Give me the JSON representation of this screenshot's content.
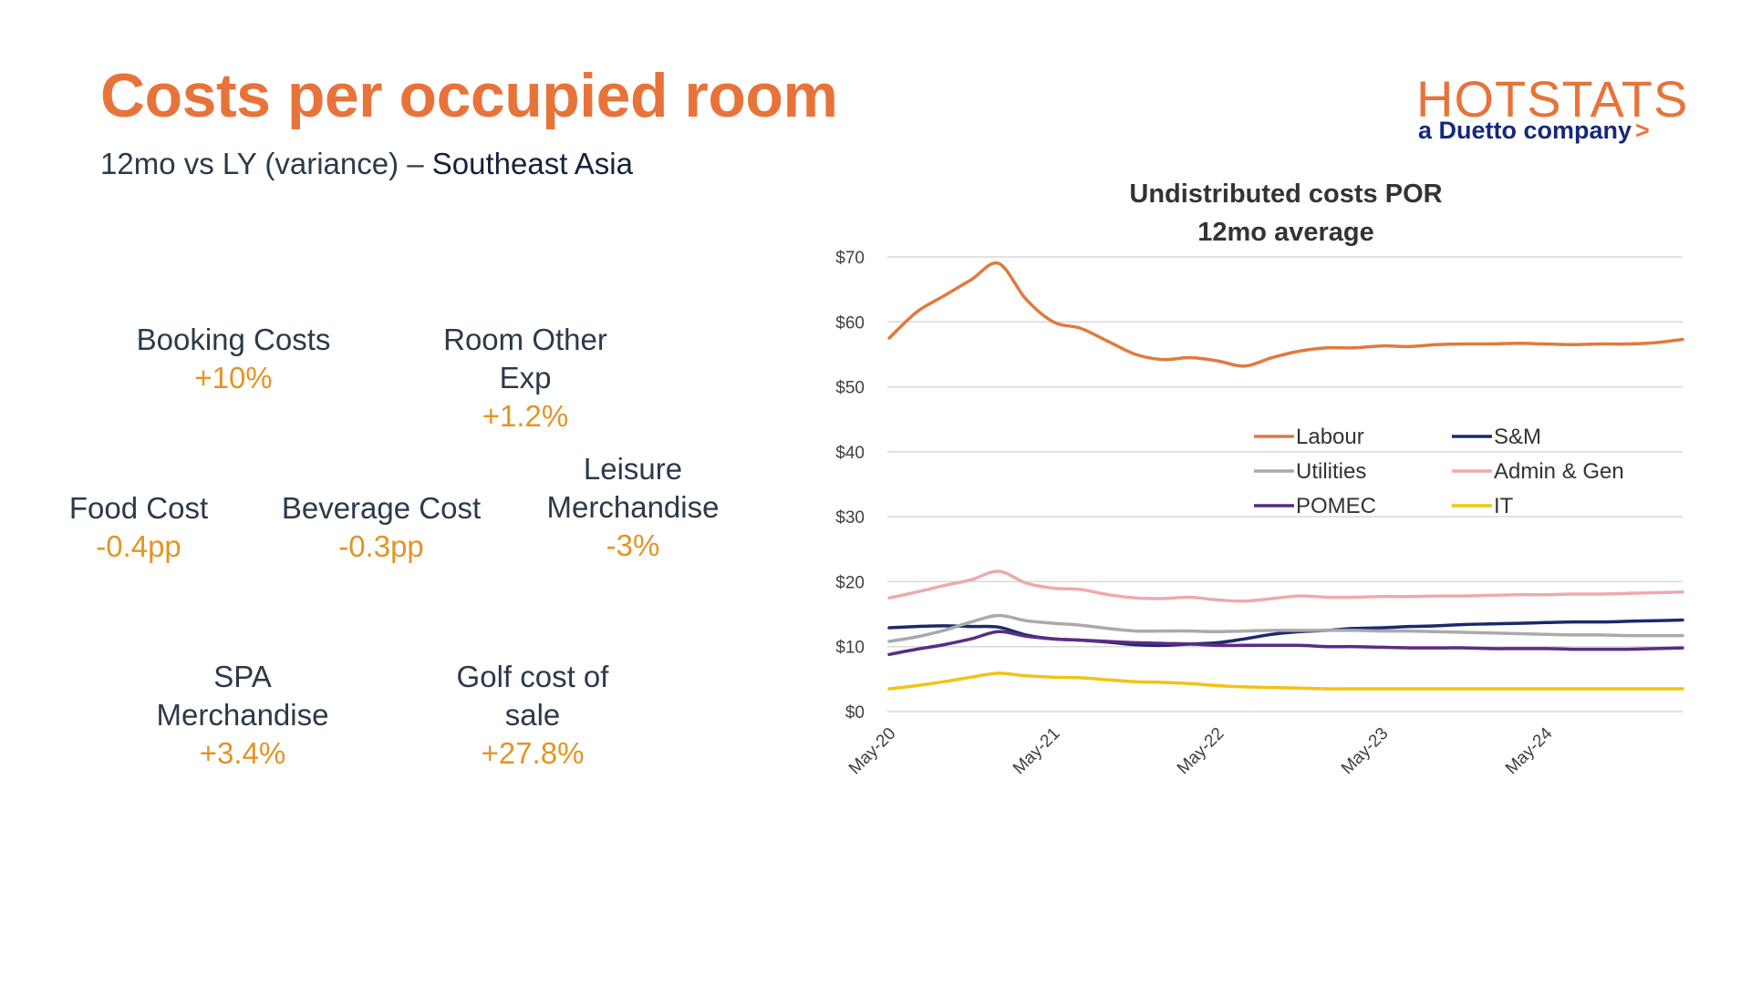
{
  "page": {
    "title": "Costs per occupied room",
    "subtitle_prefix": "12mo vs LY  (variance) – ",
    "subtitle_region": "Southeast Asia"
  },
  "logo": {
    "word": "HOTSTATS",
    "tagline": "a Duetto company",
    "chevron": ">"
  },
  "metrics": {
    "booking": {
      "label": "Booking Costs",
      "value": "+10%"
    },
    "room_other": {
      "label1": "Room Other",
      "label2": "Exp",
      "value": "+1.2%"
    },
    "food": {
      "label": "Food Cost",
      "value": "-0.4pp"
    },
    "beverage": {
      "label": "Beverage Cost",
      "value": "-0.3pp"
    },
    "leisure": {
      "label1": "Leisure",
      "label2": "Merchandise",
      "value": "-3%"
    },
    "spa": {
      "label1": "SPA",
      "label2": "Merchandise",
      "value": "+3.4%"
    },
    "golf": {
      "label1": "Golf cost of",
      "label2": "sale",
      "value": "+27.8%"
    }
  },
  "colors": {
    "accent": "#e8733a",
    "value": "#e39425",
    "text": "#2b3a4a",
    "logo_navy": "#15297a"
  },
  "chart_data": {
    "type": "line",
    "title": "Undistributed costs POR",
    "subtitle": "12mo average",
    "xlabel": "",
    "ylabel": "",
    "ylim": [
      0,
      70
    ],
    "yticks": [
      "$0",
      "$10",
      "$20",
      "$30",
      "$40",
      "$50",
      "$60",
      "$70"
    ],
    "x_tick_labels": [
      "May-20",
      "May-21",
      "May-22",
      "May-23",
      "May-24"
    ],
    "grid": true,
    "legend": "inside-right",
    "months_from_May-20": [
      0,
      2,
      4,
      6,
      8,
      10,
      12,
      14,
      16,
      18,
      20,
      22,
      24,
      26,
      28,
      30,
      32,
      34,
      36,
      38,
      40,
      42,
      44,
      46,
      48,
      50,
      52,
      54,
      56,
      58
    ],
    "series": [
      {
        "name": "Labour",
        "color": "#e07a3c",
        "values": [
          57.5,
          61.5,
          64,
          66.5,
          69,
          63.5,
          60,
          59,
          57,
          55,
          54.2,
          54.5,
          54,
          53.2,
          54.5,
          55.5,
          56,
          56,
          56.3,
          56.2,
          56.5,
          56.6,
          56.6,
          56.7,
          56.6,
          56.5,
          56.6,
          56.6,
          56.8,
          57.3
        ]
      },
      {
        "name": "S&M",
        "color": "#1b2a6b",
        "values": [
          12.9,
          13.1,
          13.2,
          13.1,
          13.0,
          11.8,
          11.2,
          11.0,
          10.7,
          10.3,
          10.2,
          10.4,
          10.6,
          11.2,
          11.9,
          12.3,
          12.5,
          12.8,
          12.9,
          13.1,
          13.2,
          13.4,
          13.5,
          13.6,
          13.7,
          13.8,
          13.8,
          13.9,
          14.0,
          14.1
        ]
      },
      {
        "name": "Utilities",
        "color": "#a9aaae",
        "values": [
          10.8,
          11.5,
          12.5,
          13.8,
          14.8,
          14.0,
          13.6,
          13.3,
          12.8,
          12.4,
          12.4,
          12.4,
          12.3,
          12.4,
          12.5,
          12.5,
          12.5,
          12.5,
          12.4,
          12.4,
          12.3,
          12.2,
          12.1,
          12.0,
          11.9,
          11.8,
          11.8,
          11.7,
          11.7,
          11.7
        ]
      },
      {
        "name": "Admin & Gen",
        "color": "#ecaaae",
        "values": [
          17.5,
          18.4,
          19.4,
          20.3,
          21.6,
          19.8,
          19.0,
          18.8,
          18.0,
          17.5,
          17.4,
          17.6,
          17.2,
          17.0,
          17.4,
          17.8,
          17.6,
          17.6,
          17.7,
          17.7,
          17.8,
          17.8,
          17.9,
          18.0,
          18.0,
          18.1,
          18.1,
          18.2,
          18.3,
          18.4
        ]
      },
      {
        "name": "POMEC",
        "color": "#5b2c86",
        "values": [
          8.8,
          9.6,
          10.3,
          11.2,
          12.3,
          11.6,
          11.2,
          11.0,
          10.8,
          10.6,
          10.5,
          10.4,
          10.2,
          10.2,
          10.2,
          10.2,
          10.0,
          10.0,
          9.9,
          9.8,
          9.8,
          9.8,
          9.7,
          9.7,
          9.7,
          9.6,
          9.6,
          9.6,
          9.7,
          9.8
        ]
      },
      {
        "name": "IT",
        "color": "#f2c314",
        "values": [
          3.5,
          4.0,
          4.6,
          5.3,
          5.9,
          5.5,
          5.3,
          5.2,
          4.9,
          4.6,
          4.5,
          4.3,
          4.0,
          3.8,
          3.7,
          3.6,
          3.5,
          3.5,
          3.5,
          3.5,
          3.5,
          3.5,
          3.5,
          3.5,
          3.5,
          3.5,
          3.5,
          3.5,
          3.5,
          3.5
        ]
      }
    ]
  }
}
